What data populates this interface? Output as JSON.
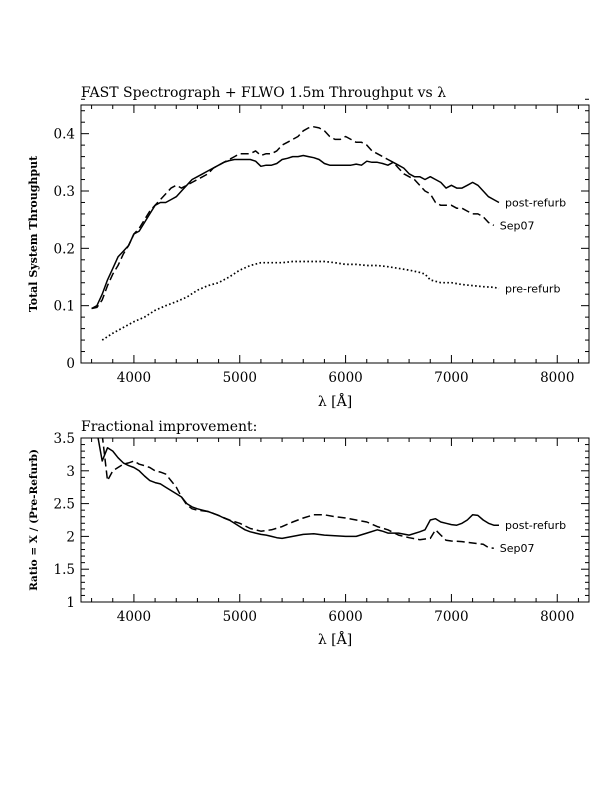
{
  "chart_data": [
    {
      "type": "line",
      "title": "FAST Spectrograph + FLWO 1.5m Throughput vs λ",
      "xlabel": "λ [Å]",
      "ylabel": "Total System Throughput",
      "xlim": [
        3500,
        8300
      ],
      "ylim": [
        0,
        0.45
      ],
      "xticks": [
        4000,
        5000,
        6000,
        7000,
        8000
      ],
      "yticks": [
        0,
        0.1,
        0.2,
        0.3,
        0.4
      ],
      "xtick_labels": [
        "4000",
        "5000",
        "6000",
        "7000",
        "8000"
      ],
      "ytick_labels": [
        "0",
        "0.1",
        "0.2",
        "0.3",
        "0.4"
      ],
      "grid": false,
      "legend": "inline labels at right end of each curve",
      "series": [
        {
          "name": "post-refurb",
          "style": "solid",
          "x": [
            3600,
            3650,
            3700,
            3750,
            3800,
            3850,
            3900,
            3950,
            4000,
            4050,
            4100,
            4150,
            4200,
            4250,
            4300,
            4350,
            4400,
            4450,
            4500,
            4550,
            4600,
            4650,
            4700,
            4750,
            4800,
            4850,
            4900,
            4950,
            5000,
            5050,
            5100,
            5150,
            5200,
            5250,
            5300,
            5350,
            5400,
            5450,
            5500,
            5550,
            5600,
            5650,
            5700,
            5750,
            5800,
            5850,
            5900,
            5950,
            6000,
            6050,
            6100,
            6150,
            6200,
            6250,
            6300,
            6350,
            6400,
            6450,
            6500,
            6550,
            6600,
            6650,
            6700,
            6750,
            6800,
            6850,
            6900,
            6950,
            7000,
            7050,
            7100,
            7150,
            7200,
            7250,
            7300,
            7350,
            7400,
            7450
          ],
          "y": [
            0.095,
            0.1,
            0.12,
            0.145,
            0.165,
            0.185,
            0.195,
            0.205,
            0.225,
            0.23,
            0.245,
            0.26,
            0.275,
            0.28,
            0.28,
            0.285,
            0.29,
            0.3,
            0.31,
            0.32,
            0.325,
            0.33,
            0.335,
            0.34,
            0.345,
            0.35,
            0.353,
            0.355,
            0.355,
            0.355,
            0.355,
            0.352,
            0.343,
            0.345,
            0.345,
            0.348,
            0.355,
            0.357,
            0.36,
            0.36,
            0.362,
            0.36,
            0.358,
            0.355,
            0.348,
            0.345,
            0.345,
            0.345,
            0.345,
            0.345,
            0.347,
            0.345,
            0.352,
            0.35,
            0.35,
            0.348,
            0.345,
            0.35,
            0.345,
            0.34,
            0.33,
            0.325,
            0.325,
            0.32,
            0.325,
            0.32,
            0.315,
            0.305,
            0.31,
            0.305,
            0.305,
            0.31,
            0.315,
            0.31,
            0.3,
            0.29,
            0.285,
            0.28
          ]
        },
        {
          "name": "Sep07",
          "style": "dashed",
          "x": [
            3600,
            3650,
            3700,
            3750,
            3800,
            3850,
            3900,
            3950,
            4000,
            4050,
            4100,
            4150,
            4200,
            4250,
            4300,
            4350,
            4400,
            4450,
            4500,
            4550,
            4600,
            4650,
            4700,
            4750,
            4800,
            4850,
            4900,
            4950,
            5000,
            5050,
            5100,
            5150,
            5200,
            5250,
            5300,
            5350,
            5400,
            5450,
            5500,
            5550,
            5600,
            5650,
            5700,
            5750,
            5800,
            5850,
            5900,
            5950,
            6000,
            6050,
            6100,
            6150,
            6200,
            6250,
            6300,
            6350,
            6400,
            6450,
            6500,
            6550,
            6600,
            6650,
            6700,
            6750,
            6800,
            6850,
            6900,
            6950,
            7000,
            7050,
            7100,
            7150,
            7200,
            7250,
            7300,
            7350,
            7400
          ],
          "y": [
            0.095,
            0.097,
            0.11,
            0.135,
            0.155,
            0.17,
            0.19,
            0.205,
            0.225,
            0.235,
            0.25,
            0.265,
            0.275,
            0.285,
            0.295,
            0.305,
            0.31,
            0.305,
            0.31,
            0.315,
            0.32,
            0.325,
            0.33,
            0.34,
            0.345,
            0.35,
            0.355,
            0.36,
            0.365,
            0.365,
            0.365,
            0.37,
            0.362,
            0.365,
            0.365,
            0.37,
            0.38,
            0.385,
            0.39,
            0.395,
            0.405,
            0.41,
            0.412,
            0.41,
            0.405,
            0.395,
            0.39,
            0.39,
            0.395,
            0.39,
            0.385,
            0.385,
            0.38,
            0.37,
            0.365,
            0.36,
            0.355,
            0.35,
            0.34,
            0.33,
            0.325,
            0.32,
            0.31,
            0.3,
            0.295,
            0.28,
            0.275,
            0.275,
            0.275,
            0.27,
            0.27,
            0.265,
            0.26,
            0.26,
            0.255,
            0.245,
            0.24
          ]
        },
        {
          "name": "pre-refurb",
          "style": "dotted",
          "x": [
            3700,
            3800,
            3900,
            4000,
            4100,
            4200,
            4300,
            4400,
            4500,
            4600,
            4700,
            4800,
            4900,
            5000,
            5100,
            5200,
            5300,
            5400,
            5500,
            5600,
            5700,
            5800,
            5900,
            6000,
            6100,
            6200,
            6300,
            6400,
            6500,
            6600,
            6700,
            6750,
            6800,
            6900,
            7000,
            7100,
            7200,
            7300,
            7400,
            7450
          ],
          "y": [
            0.04,
            0.052,
            0.062,
            0.072,
            0.08,
            0.092,
            0.1,
            0.107,
            0.115,
            0.127,
            0.135,
            0.14,
            0.15,
            0.162,
            0.17,
            0.175,
            0.175,
            0.175,
            0.177,
            0.177,
            0.177,
            0.177,
            0.175,
            0.172,
            0.172,
            0.17,
            0.17,
            0.168,
            0.165,
            0.162,
            0.158,
            0.155,
            0.145,
            0.14,
            0.14,
            0.137,
            0.135,
            0.133,
            0.132,
            0.13
          ]
        }
      ]
    },
    {
      "type": "line",
      "title": "Fractional improvement:",
      "xlabel": "λ [Å]",
      "ylabel": "Ratio = X / (Pre-Refurb)",
      "xlim": [
        3500,
        8300
      ],
      "ylim": [
        1,
        3.5
      ],
      "xticks": [
        4000,
        5000,
        6000,
        7000,
        8000
      ],
      "yticks": [
        1,
        1.5,
        2,
        2.5,
        3,
        3.5
      ],
      "xtick_labels": [
        "4000",
        "5000",
        "6000",
        "7000",
        "8000"
      ],
      "ytick_labels": [
        "1",
        "1.5",
        "2",
        "2.5",
        "3",
        "3.5"
      ],
      "grid": false,
      "legend": "inline labels at right end of each curve",
      "series": [
        {
          "name": "post-refurb",
          "style": "solid",
          "x": [
            3650,
            3700,
            3750,
            3800,
            3850,
            3900,
            3950,
            4000,
            4050,
            4100,
            4150,
            4200,
            4250,
            4300,
            4350,
            4400,
            4450,
            4500,
            4550,
            4600,
            4650,
            4700,
            4750,
            4800,
            4850,
            4900,
            4950,
            5000,
            5050,
            5100,
            5150,
            5200,
            5250,
            5300,
            5350,
            5400,
            5500,
            5600,
            5700,
            5800,
            5900,
            6000,
            6100,
            6200,
            6300,
            6350,
            6400,
            6500,
            6600,
            6700,
            6750,
            6800,
            6850,
            6900,
            6950,
            7000,
            7050,
            7100,
            7150,
            7200,
            7250,
            7300,
            7350,
            7400,
            7450
          ],
          "y": [
            3.6,
            3.15,
            3.35,
            3.3,
            3.2,
            3.12,
            3.08,
            3.05,
            3.0,
            2.92,
            2.85,
            2.82,
            2.8,
            2.75,
            2.7,
            2.65,
            2.6,
            2.5,
            2.45,
            2.42,
            2.4,
            2.38,
            2.35,
            2.32,
            2.28,
            2.25,
            2.2,
            2.15,
            2.1,
            2.07,
            2.05,
            2.03,
            2.02,
            2.0,
            1.98,
            1.97,
            2.0,
            2.03,
            2.04,
            2.02,
            2.01,
            2.0,
            2.0,
            2.05,
            2.1,
            2.08,
            2.05,
            2.05,
            2.02,
            2.07,
            2.1,
            2.25,
            2.27,
            2.22,
            2.2,
            2.18,
            2.17,
            2.2,
            2.25,
            2.33,
            2.32,
            2.25,
            2.2,
            2.17,
            2.17
          ]
        },
        {
          "name": "Sep07",
          "style": "dashed",
          "x": [
            3700,
            3750,
            3800,
            3850,
            3900,
            3950,
            4000,
            4050,
            4100,
            4150,
            4200,
            4250,
            4300,
            4350,
            4400,
            4450,
            4500,
            4550,
            4600,
            4700,
            4800,
            4900,
            5000,
            5100,
            5200,
            5300,
            5400,
            5500,
            5600,
            5700,
            5800,
            5900,
            6000,
            6100,
            6200,
            6300,
            6400,
            6500,
            6600,
            6700,
            6800,
            6850,
            6900,
            6950,
            7000,
            7100,
            7200,
            7300,
            7350,
            7400
          ],
          "y": [
            3.55,
            2.85,
            3.0,
            3.05,
            3.1,
            3.12,
            3.15,
            3.1,
            3.08,
            3.05,
            3.0,
            2.98,
            2.95,
            2.85,
            2.75,
            2.6,
            2.48,
            2.42,
            2.4,
            2.38,
            2.32,
            2.25,
            2.2,
            2.12,
            2.08,
            2.1,
            2.15,
            2.22,
            2.28,
            2.33,
            2.33,
            2.3,
            2.28,
            2.25,
            2.22,
            2.15,
            2.1,
            2.02,
            1.98,
            1.95,
            1.97,
            2.1,
            2.02,
            1.94,
            1.93,
            1.92,
            1.9,
            1.88,
            1.83,
            1.82
          ]
        }
      ]
    }
  ]
}
